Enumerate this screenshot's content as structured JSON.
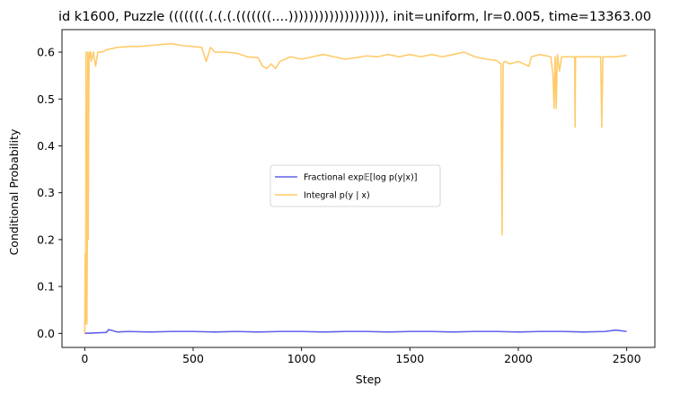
{
  "chart_data": {
    "type": "line",
    "title": "id k1600, Puzzle (((((((.(.(.(.(((((((....))))))))))))))))))), init=uniform, lr=0.005, time=13363.00",
    "xlabel": "Step",
    "ylabel": "Conditional Probability",
    "xlim": [
      -105,
      2630
    ],
    "ylim": [
      -0.03,
      0.648
    ],
    "xticks": [
      0,
      500,
      1000,
      1500,
      2000,
      2500
    ],
    "xtick_labels": [
      "0",
      "500",
      "1000",
      "1500",
      "2000",
      "2500"
    ],
    "yticks": [
      0.0,
      0.1,
      0.2,
      0.3,
      0.4,
      0.5,
      0.6
    ],
    "ytick_labels": [
      "0.0",
      "0.1",
      "0.2",
      "0.3",
      "0.4",
      "0.5",
      "0.6"
    ],
    "grid": false,
    "legend_position": "center",
    "series": [
      {
        "name": "Fractional exp𝔼[log p(y|x)]",
        "color": "#3b3be6",
        "x": [
          0,
          50,
          100,
          110,
          150,
          200,
          300,
          400,
          500,
          600,
          700,
          800,
          900,
          1000,
          1100,
          1200,
          1300,
          1400,
          1500,
          1600,
          1700,
          1800,
          1900,
          2000,
          2100,
          2200,
          2300,
          2400,
          2450,
          2500
        ],
        "values": [
          0.0,
          0.001,
          0.002,
          0.008,
          0.003,
          0.004,
          0.003,
          0.004,
          0.004,
          0.003,
          0.004,
          0.003,
          0.004,
          0.004,
          0.003,
          0.004,
          0.004,
          0.003,
          0.004,
          0.004,
          0.003,
          0.004,
          0.004,
          0.003,
          0.004,
          0.004,
          0.003,
          0.004,
          0.007,
          0.004
        ]
      },
      {
        "name": "Integral p(y | x)",
        "color": "#ffbe46",
        "x": [
          0,
          2,
          4,
          6,
          8,
          10,
          12,
          14,
          16,
          18,
          20,
          22,
          25,
          28,
          30,
          35,
          40,
          50,
          60,
          80,
          100,
          150,
          200,
          250,
          300,
          350,
          400,
          450,
          500,
          540,
          560,
          580,
          600,
          650,
          700,
          750,
          800,
          820,
          840,
          860,
          880,
          900,
          950,
          1000,
          1050,
          1100,
          1150,
          1200,
          1250,
          1300,
          1350,
          1400,
          1450,
          1500,
          1550,
          1600,
          1650,
          1700,
          1750,
          1800,
          1850,
          1900,
          1920,
          1925,
          1930,
          1935,
          1940,
          1960,
          2000,
          2050,
          2060,
          2100,
          2150,
          2160,
          2165,
          2170,
          2175,
          2180,
          2190,
          2200,
          2250,
          2260,
          2262,
          2264,
          2270,
          2300,
          2350,
          2380,
          2385,
          2390,
          2395,
          2400,
          2450,
          2500
        ],
        "values": [
          0.0,
          0.17,
          0.02,
          0.6,
          0.2,
          0.02,
          0.22,
          0.6,
          0.2,
          0.44,
          0.58,
          0.6,
          0.59,
          0.6,
          0.58,
          0.59,
          0.6,
          0.57,
          0.6,
          0.6,
          0.605,
          0.61,
          0.612,
          0.612,
          0.614,
          0.616,
          0.618,
          0.614,
          0.612,
          0.61,
          0.58,
          0.61,
          0.6,
          0.6,
          0.598,
          0.59,
          0.588,
          0.57,
          0.565,
          0.575,
          0.565,
          0.58,
          0.59,
          0.585,
          0.59,
          0.595,
          0.59,
          0.585,
          0.588,
          0.592,
          0.59,
          0.595,
          0.59,
          0.595,
          0.59,
          0.595,
          0.59,
          0.595,
          0.6,
          0.59,
          0.585,
          0.582,
          0.575,
          0.21,
          0.575,
          0.58,
          0.58,
          0.575,
          0.58,
          0.57,
          0.59,
          0.595,
          0.59,
          0.55,
          0.48,
          0.59,
          0.48,
          0.595,
          0.56,
          0.59,
          0.59,
          0.59,
          0.44,
          0.59,
          0.59,
          0.59,
          0.59,
          0.59,
          0.44,
          0.59,
          0.59,
          0.59,
          0.59,
          0.593
        ]
      }
    ]
  }
}
